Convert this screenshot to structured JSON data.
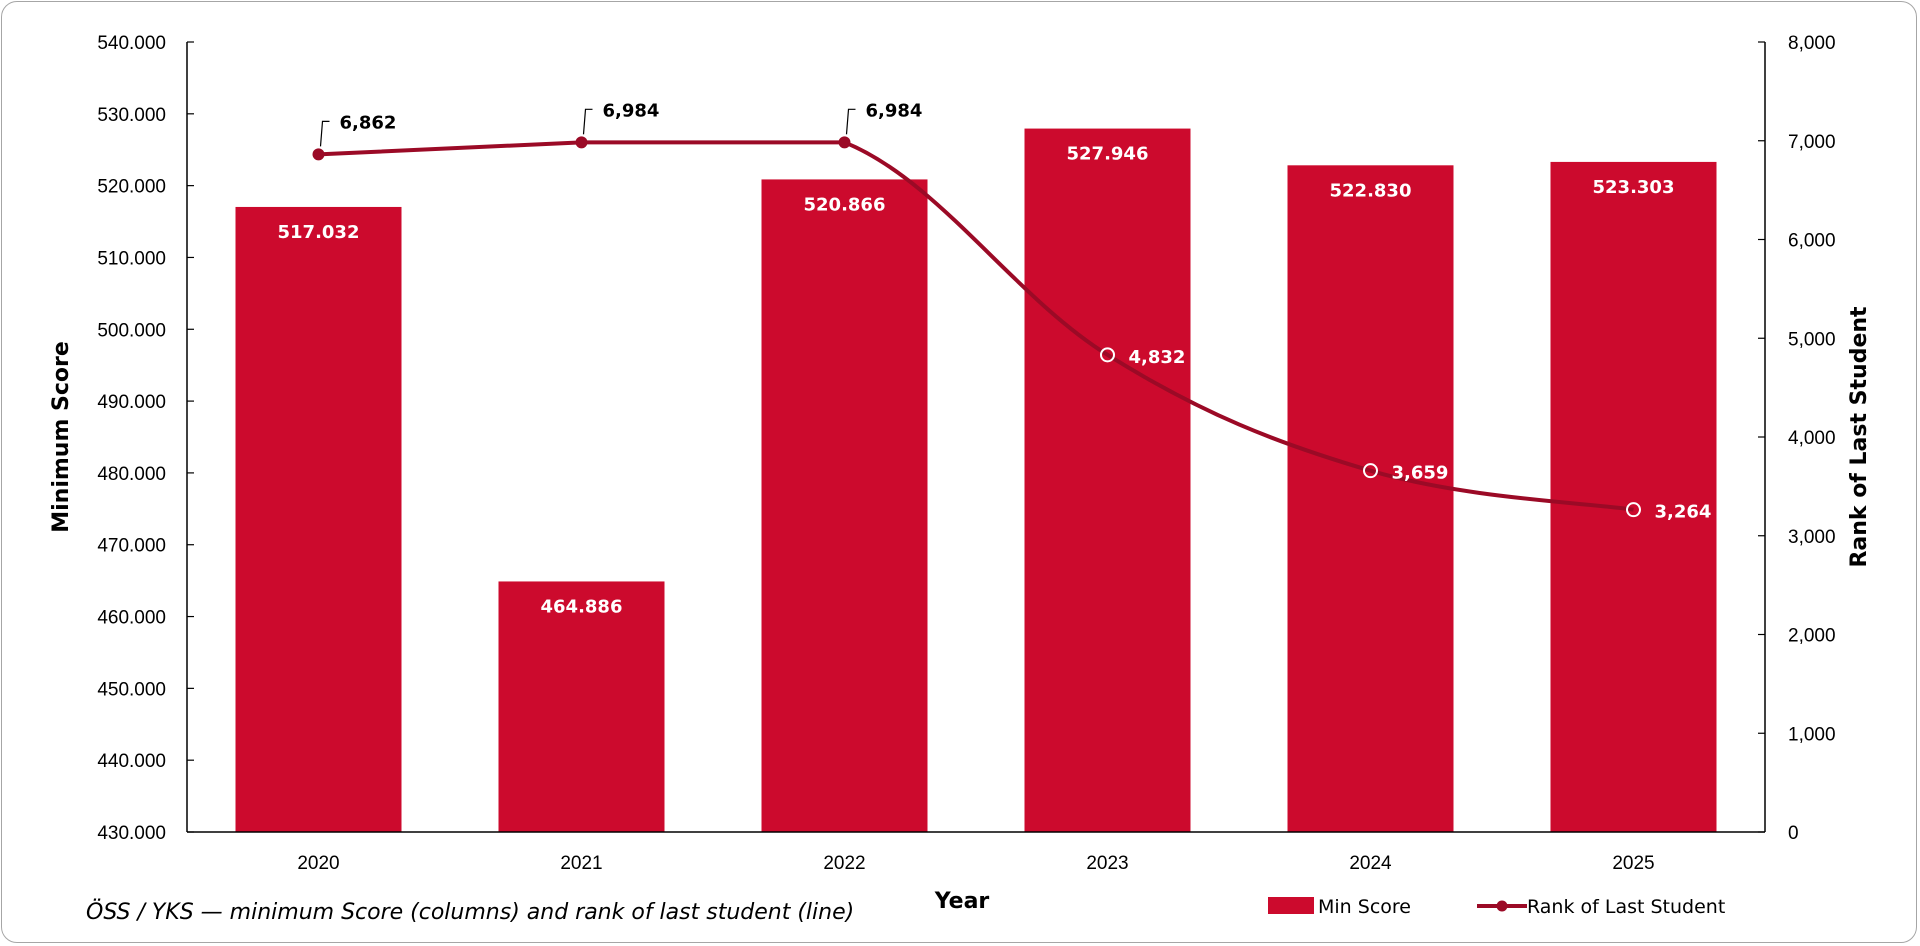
{
  "chart_data": {
    "type": "bar+line",
    "categories": [
      "2020",
      "2021",
      "2022",
      "2023",
      "2024",
      "2025"
    ],
    "series": [
      {
        "name": "Min Score",
        "type": "bar",
        "axis": "left",
        "values": [
          517.032,
          464.886,
          520.866,
          527.946,
          522.83,
          523.303
        ],
        "labels": [
          "517.032",
          "464.886",
          "520.866",
          "527.946",
          "522.830",
          "523.303"
        ],
        "color": "#cc0a2d"
      },
      {
        "name": "Rank of Last Student",
        "type": "line",
        "axis": "right",
        "values": [
          6862,
          6984,
          6984,
          4832,
          3659,
          3264
        ],
        "labels": [
          "6,862",
          "6,984",
          "6,984",
          "4,832",
          "3,659",
          "3,264"
        ],
        "color": "#9b0a26"
      }
    ],
    "xlabel": "Year",
    "ylabel": "Minimum Score",
    "y2label": "Rank of Last Student",
    "ylim": [
      430,
      540
    ],
    "y2lim": [
      0,
      8000
    ],
    "yticks": [
      "430.000",
      "440.000",
      "450.000",
      "460.000",
      "470.000",
      "480.000",
      "490.000",
      "500.000",
      "510.000",
      "520.000",
      "530.000",
      "540.000"
    ],
    "y2ticks": [
      "0",
      "1,000",
      "2,000",
      "3,000",
      "4,000",
      "5,000",
      "6,000",
      "7,000",
      "8,000"
    ],
    "grid": false,
    "legend_position": "bottom-right",
    "caption": "ÖSS / YKS — minimum Score (columns)  and rank of last student (line)"
  }
}
